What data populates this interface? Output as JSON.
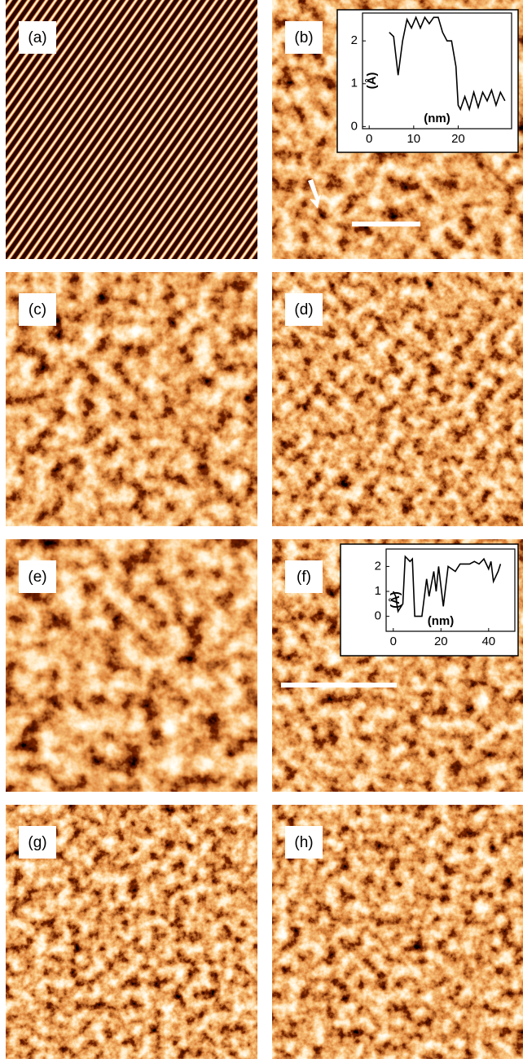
{
  "panels": [
    {
      "label": "(a)"
    },
    {
      "label": "(b)"
    },
    {
      "label": "(c)"
    },
    {
      "label": "(d)"
    },
    {
      "label": "(e)"
    },
    {
      "label": "(f)"
    },
    {
      "label": "(g)"
    },
    {
      "label": "(h)"
    }
  ],
  "chart_data": [
    {
      "type": "line",
      "xlabel": "(nm)",
      "ylabel": "(Å)",
      "x": [
        4.5,
        5.5,
        6.5,
        7.5,
        8.5,
        9.5,
        10.5,
        11.5,
        12.5,
        13.5,
        14.5,
        15.5,
        16.5,
        17.5,
        18.5,
        19.5,
        20,
        20.5,
        21.5,
        22.5,
        23.5,
        24.5,
        25.5,
        26.5,
        27.5,
        28.5,
        29.5,
        30.5
      ],
      "values": [
        2.2,
        2.1,
        1.2,
        2.0,
        2.5,
        2.3,
        2.55,
        2.3,
        2.55,
        2.4,
        2.55,
        2.55,
        2.2,
        2.0,
        2.0,
        1.4,
        0.5,
        0.4,
        0.7,
        0.4,
        0.8,
        0.45,
        0.8,
        0.6,
        0.85,
        0.5,
        0.8,
        0.6
      ],
      "color": "#000000",
      "xlim": [
        -1.5,
        32
      ],
      "ylim": [
        -0.05,
        2.65
      ],
      "xticks": [
        0,
        10,
        20
      ],
      "yticks": [
        0,
        1,
        2
      ]
    },
    {
      "type": "line",
      "xlabel": "(nm)",
      "ylabel": "(Å)",
      "x": [
        0,
        1,
        2,
        4,
        5,
        7,
        8,
        9,
        12,
        14,
        15,
        17,
        18,
        19,
        21,
        23,
        26,
        28,
        32,
        34,
        36,
        38,
        40,
        41,
        42,
        44,
        45
      ],
      "values": [
        1.0,
        0.8,
        0.2,
        0.5,
        2.4,
        2.2,
        2.3,
        0,
        0,
        1.5,
        0.8,
        1.8,
        1.0,
        2.0,
        0.4,
        2.0,
        1.8,
        2.1,
        2.1,
        2.2,
        2.1,
        2.3,
        1.9,
        2.2,
        1.4,
        1.8,
        2.1
      ],
      "color": "#000000",
      "xlim": [
        -3,
        51
      ],
      "ylim": [
        -0.6,
        2.7
      ],
      "xticks": [
        0,
        20,
        40
      ],
      "yticks": [
        0,
        1,
        2
      ]
    }
  ]
}
